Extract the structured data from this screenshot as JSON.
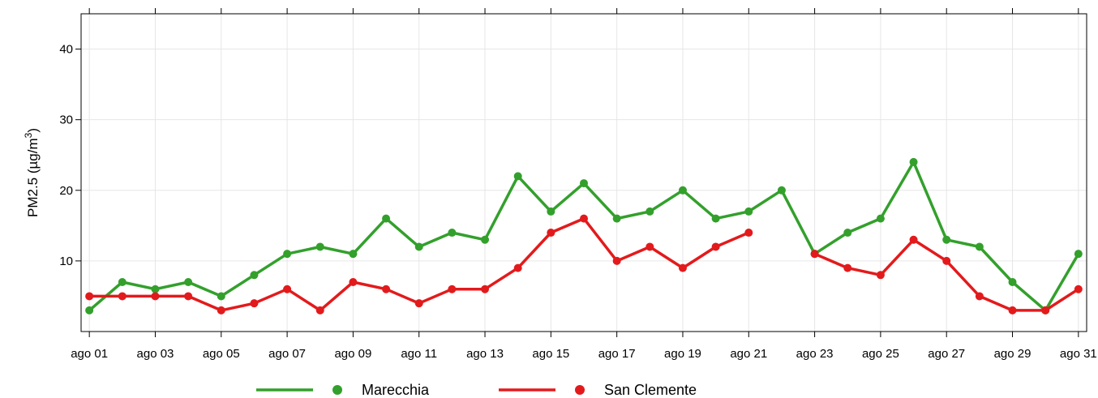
{
  "chart_data": {
    "type": "line",
    "title": "",
    "xlabel": "",
    "ylabel": "PM2.5 (µg/m",
    "ylabel_sup": "3",
    "ylabel_close": ")",
    "ylim": [
      0,
      45
    ],
    "yticks": [
      10,
      20,
      30,
      40
    ],
    "xlim": [
      0.75,
      31.25
    ],
    "x": [
      1,
      2,
      3,
      4,
      5,
      6,
      7,
      8,
      9,
      10,
      11,
      12,
      13,
      14,
      15,
      16,
      17,
      18,
      19,
      20,
      21,
      22,
      23,
      24,
      25,
      26,
      27,
      28,
      29,
      30,
      31
    ],
    "xticks": [
      {
        "x": 1,
        "label": "ago 01"
      },
      {
        "x": 3,
        "label": "ago 03"
      },
      {
        "x": 5,
        "label": "ago 05"
      },
      {
        "x": 7,
        "label": "ago 07"
      },
      {
        "x": 9,
        "label": "ago 09"
      },
      {
        "x": 11,
        "label": "ago 11"
      },
      {
        "x": 13,
        "label": "ago 13"
      },
      {
        "x": 15,
        "label": "ago 15"
      },
      {
        "x": 17,
        "label": "ago 17"
      },
      {
        "x": 19,
        "label": "ago 19"
      },
      {
        "x": 21,
        "label": "ago 21"
      },
      {
        "x": 23,
        "label": "ago 23"
      },
      {
        "x": 25,
        "label": "ago 25"
      },
      {
        "x": 27,
        "label": "ago 27"
      },
      {
        "x": 29,
        "label": "ago 29"
      },
      {
        "x": 31,
        "label": "ago 31"
      }
    ],
    "grid": true,
    "legend_position": "bottom",
    "series": [
      {
        "name": "Marecchia",
        "color": "#33a02c",
        "values": [
          3,
          7,
          6,
          7,
          5,
          8,
          11,
          12,
          11,
          16,
          12,
          14,
          13,
          22,
          17,
          21,
          16,
          17,
          20,
          16,
          17,
          20,
          11,
          14,
          16,
          24,
          13,
          12,
          7,
          3,
          11
        ]
      },
      {
        "name": "San Clemente",
        "color": "#e31a1c",
        "values": [
          5,
          5,
          5,
          5,
          3,
          4,
          6,
          3,
          7,
          6,
          4,
          6,
          6,
          9,
          14,
          16,
          10,
          12,
          9,
          12,
          14,
          null,
          11,
          9,
          8,
          13,
          10,
          5,
          3,
          3,
          6
        ]
      }
    ]
  }
}
